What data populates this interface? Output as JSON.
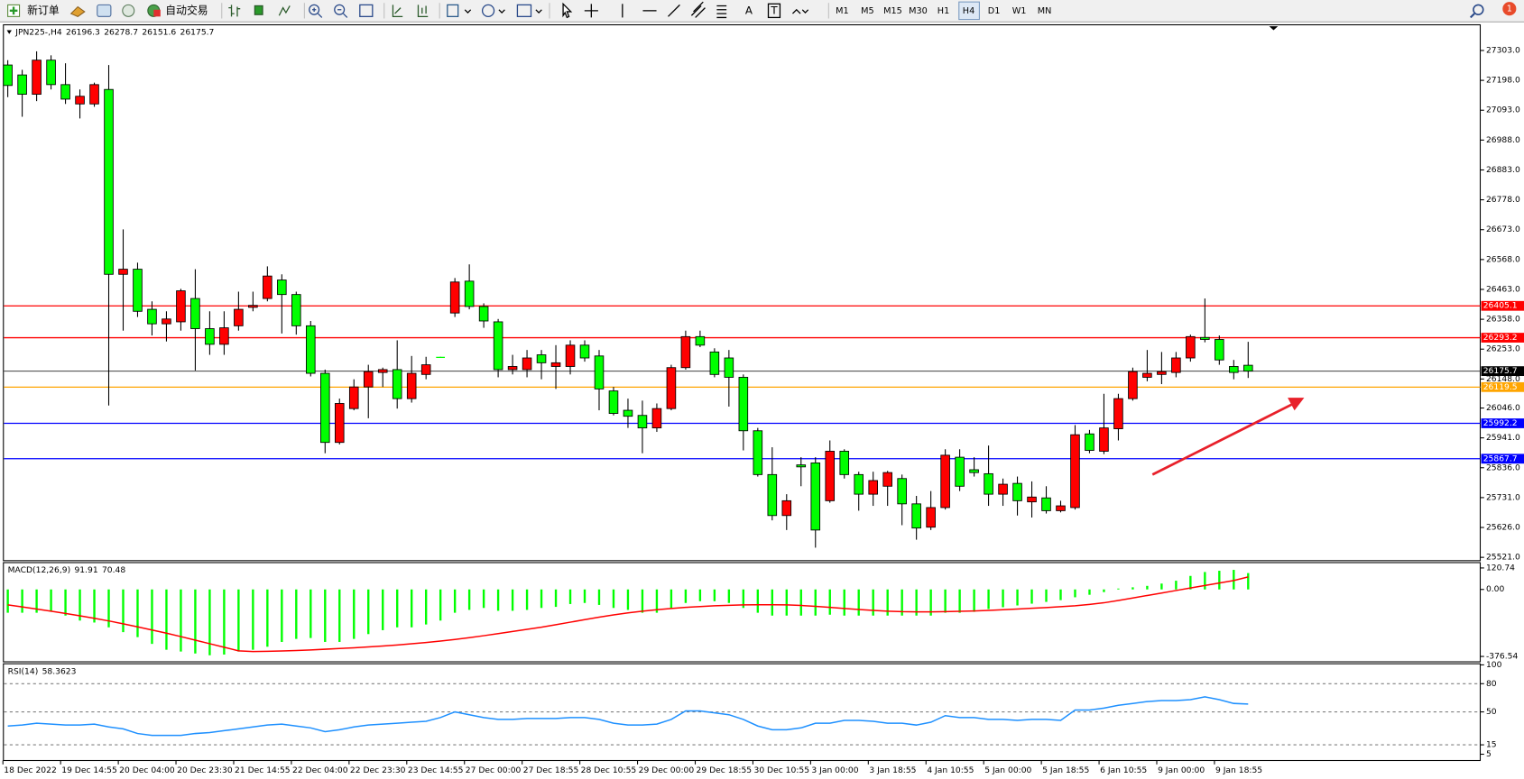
{
  "toolbar": {
    "new_order": "新订单",
    "auto_trading": "自动交易",
    "tools": [
      "A",
      "T"
    ],
    "timeframes": [
      "M1",
      "M5",
      "M15",
      "M30",
      "H1",
      "H4",
      "D1",
      "W1",
      "MN"
    ],
    "notification": "1"
  },
  "chart_data": [
    {
      "type": "candlestick",
      "title": "JPN225-,H4",
      "categories": [
        "18 Dec 2022",
        null,
        null,
        null,
        "19 Dec 14:55",
        null,
        null,
        null,
        "20 Dec 04:00",
        null,
        null,
        null,
        "20 Dec 23:30",
        null,
        null,
        null,
        "21 Dec 14:55",
        null,
        null,
        null,
        "22 Dec 04:00",
        null,
        null,
        null,
        "22 Dec 23:30",
        null,
        null,
        null,
        "23 Dec 14:55",
        null,
        null,
        null,
        "27 Dec 00:00",
        null,
        null,
        null,
        "27 Dec 18:55",
        null,
        null,
        null,
        "28 Dec 10:55",
        null,
        null,
        null,
        "29 Dec 00:00",
        null,
        null,
        null,
        "29 Dec 18:55",
        null,
        null,
        null,
        "30 Dec 10:55",
        null,
        null,
        null,
        "3 Jan 00:00",
        null,
        null,
        null,
        "3 Jan 18:55",
        null,
        null,
        null,
        "4 Jan 10:55",
        null,
        null,
        null,
        "5 Jan 00:00",
        null,
        null,
        null,
        "5 Jan 18:55",
        null,
        null,
        null,
        "6 Jan 10:55",
        null,
        null,
        null,
        "9 Jan 00:00",
        null,
        null,
        null,
        "9 Jan 18:55",
        null,
        null
      ],
      "ohlc": [
        [
          27252,
          27269,
          27139,
          27180
        ],
        [
          27217,
          27235,
          27070,
          27149
        ],
        [
          27149,
          27300,
          27125,
          27269
        ],
        [
          27269,
          27286,
          27166,
          27183
        ],
        [
          27183,
          27258,
          27115,
          27132
        ],
        [
          27115,
          27166,
          27064,
          27142
        ],
        [
          27115,
          27190,
          27105,
          27183
        ],
        [
          27166,
          27252,
          26055,
          26516
        ],
        [
          26516,
          26674,
          26318,
          26534
        ],
        [
          26534,
          26557,
          26366,
          26386
        ],
        [
          26393,
          26421,
          26301,
          26342
        ],
        [
          26342,
          26386,
          26280,
          26359
        ],
        [
          26349,
          26465,
          26318,
          26458
        ],
        [
          26431,
          26534,
          26178,
          26325
        ],
        [
          26325,
          26386,
          26233,
          26270
        ],
        [
          26270,
          26386,
          26233,
          26328
        ],
        [
          26335,
          26455,
          26318,
          26393
        ],
        [
          26400,
          26455,
          26386,
          26407
        ],
        [
          26431,
          26544,
          26421,
          26510
        ],
        [
          26496,
          26516,
          26308,
          26445
        ],
        [
          26445,
          26455,
          26304,
          26335
        ],
        [
          26335,
          26352,
          26157,
          26168
        ],
        [
          26168,
          26181,
          25887,
          25925
        ],
        [
          25925,
          26079,
          25918,
          26062
        ],
        [
          26044,
          26147,
          26038,
          26120
        ],
        [
          26120,
          26198,
          26010,
          26174
        ],
        [
          26171,
          26188,
          26120,
          26181
        ],
        [
          26181,
          26284,
          26044,
          26079
        ],
        [
          26079,
          26229,
          26065,
          26168
        ],
        [
          26164,
          26226,
          26147,
          26198
        ],
        [
          26226,
          26226,
          26222,
          26222
        ],
        [
          26380,
          26503,
          26366,
          26489
        ],
        [
          26492,
          26551,
          26393,
          26403
        ],
        [
          26403,
          26414,
          26328,
          26352
        ],
        [
          26349,
          26359,
          26154,
          26181
        ],
        [
          26181,
          26233,
          26164,
          26192
        ],
        [
          26181,
          26250,
          26154,
          26222
        ],
        [
          26233,
          26250,
          26147,
          26205
        ],
        [
          26192,
          26267,
          26113,
          26205
        ],
        [
          26192,
          26284,
          26164,
          26267
        ],
        [
          26267,
          26284,
          26209,
          26222
        ],
        [
          26229,
          26250,
          26038,
          26113
        ],
        [
          26106,
          26120,
          26020,
          26027
        ],
        [
          26038,
          26079,
          25976,
          26017
        ],
        [
          26020,
          26072,
          25887,
          25976
        ],
        [
          25976,
          26062,
          25962,
          26044
        ],
        [
          26044,
          26198,
          26038,
          26188
        ],
        [
          26188,
          26318,
          26181,
          26297
        ],
        [
          26297,
          26318,
          26260,
          26267
        ],
        [
          26243,
          26256,
          26154,
          26164
        ],
        [
          26222,
          26250,
          26051,
          26154
        ],
        [
          26154,
          26164,
          25897,
          25966
        ],
        [
          25966,
          25976,
          25805,
          25812
        ],
        [
          25812,
          25908,
          25651,
          25668
        ],
        [
          25668,
          25743,
          25617,
          25720
        ],
        [
          25846,
          25873,
          25771,
          25839
        ],
        [
          25853,
          25873,
          25555,
          25617
        ],
        [
          25720,
          25932,
          25713,
          25894
        ],
        [
          25894,
          25901,
          25798,
          25812
        ],
        [
          25812,
          25822,
          25685,
          25743
        ],
        [
          25743,
          25822,
          25702,
          25791
        ],
        [
          25771,
          25825,
          25702,
          25819
        ],
        [
          25798,
          25812,
          25634,
          25709
        ],
        [
          25709,
          25737,
          25583,
          25624
        ],
        [
          25627,
          25754,
          25617,
          25696
        ],
        [
          25696,
          25901,
          25689,
          25880
        ],
        [
          25873,
          25901,
          25754,
          25771
        ],
        [
          25829,
          25873,
          25805,
          25819
        ],
        [
          25815,
          25914,
          25702,
          25743
        ],
        [
          25743,
          25798,
          25702,
          25778
        ],
        [
          25781,
          25805,
          25668,
          25720
        ],
        [
          25716,
          25788,
          25661,
          25733
        ],
        [
          25730,
          25771,
          25675,
          25685
        ],
        [
          25685,
          25720,
          25679,
          25702
        ],
        [
          25696,
          25986,
          25689,
          25952
        ],
        [
          25955,
          25969,
          25887,
          25897
        ],
        [
          25894,
          26096,
          25884,
          25976
        ],
        [
          25973,
          26096,
          25932,
          26079
        ],
        [
          26079,
          26188,
          26072,
          26174
        ],
        [
          26154,
          26250,
          26140,
          26168
        ],
        [
          26164,
          26243,
          26130,
          26174
        ],
        [
          26171,
          26243,
          26154,
          26222
        ],
        [
          26222,
          26304,
          26209,
          26297
        ],
        [
          26294,
          26431,
          26277,
          26287
        ],
        [
          26287,
          26301,
          26198,
          26215
        ],
        [
          26192,
          26215,
          26147,
          26171
        ],
        [
          26196.3,
          26278.7,
          26151.6,
          26175.7
        ]
      ],
      "up_color": "#ff0000",
      "down_color": "#00ff00",
      "price_line_color": "#404040",
      "ylim": [
        25511,
        27395
      ],
      "yticks": [
        {
          "value": 27303,
          "label": "27303.0"
        },
        {
          "value": 27198,
          "label": "27198.0"
        },
        {
          "value": 27093,
          "label": "27093.0"
        },
        {
          "value": 26988,
          "label": "26988.0"
        },
        {
          "value": 26883,
          "label": "26883.0"
        },
        {
          "value": 26778,
          "label": "26778.0"
        },
        {
          "value": 26673,
          "label": "26673.0"
        },
        {
          "value": 26568,
          "label": "26568.0"
        },
        {
          "value": 26463,
          "label": "26463.0"
        },
        {
          "value": 26358,
          "label": "26358.0"
        },
        {
          "value": 26253,
          "label": "26253.0"
        },
        {
          "value": 26148,
          "label": "26148.0"
        },
        {
          "value": 26046,
          "label": "26046.0"
        },
        {
          "value": 25941,
          "label": "25941.0"
        },
        {
          "value": 25836,
          "label": "25836.0"
        },
        {
          "value": 25731,
          "label": "25731.0"
        },
        {
          "value": 25626,
          "label": "25626.0"
        },
        {
          "value": 25521,
          "label": "25521.0"
        }
      ],
      "hlines": [
        {
          "value": 26405.1,
          "color": "#ff0000"
        },
        {
          "value": 26293.2,
          "color": "#ff0000"
        },
        {
          "value": 26119.5,
          "color": "#ffa500"
        },
        {
          "value": 25992.2,
          "color": "#0000ff"
        },
        {
          "value": 25867.7,
          "color": "#0000ff"
        }
      ]
    },
    {
      "type": "macd",
      "title": "MACD(12,26,9)",
      "histogram": {
        "color": "#00ff00",
        "values": [
          -131,
          -131,
          -131,
          -120,
          -147,
          -175,
          -186,
          -213,
          -240,
          -268,
          -306,
          -339,
          -349,
          -360,
          -370,
          -366,
          -349,
          -339,
          -322,
          -295,
          -278,
          -273,
          -295,
          -295,
          -278,
          -251,
          -229,
          -213,
          -213,
          -197,
          -175,
          -131,
          -115,
          -104,
          -120,
          -120,
          -115,
          -104,
          -98,
          -82,
          -76,
          -87,
          -104,
          -115,
          -131,
          -131,
          -109,
          -76,
          -66,
          -66,
          -76,
          -104,
          -131,
          -147,
          -147,
          -147,
          -147,
          -142,
          -147,
          -147,
          -147,
          -147,
          -147,
          -147,
          -147,
          -131,
          -131,
          -126,
          -110,
          -100,
          -90,
          -80,
          -70,
          -60,
          -44,
          -30,
          -15,
          5,
          12,
          20,
          33,
          49,
          76,
          98,
          105,
          110,
          91.91
        ]
      },
      "signal": {
        "color": "#ff0000",
        "values": [
          -87,
          -98,
          -110,
          -122,
          -135,
          -148,
          -162,
          -177,
          -193,
          -210,
          -228,
          -246,
          -265,
          -285,
          -305,
          -325,
          -345,
          -349,
          -348,
          -346,
          -343,
          -340,
          -336,
          -332,
          -328,
          -323,
          -318,
          -312,
          -305,
          -298,
          -290,
          -281,
          -271,
          -260,
          -248,
          -236,
          -224,
          -212,
          -198,
          -184,
          -170,
          -156,
          -143,
          -132,
          -122,
          -114,
          -107,
          -101,
          -96,
          -92,
          -89,
          -87,
          -86,
          -86,
          -87,
          -90,
          -95,
          -101,
          -107,
          -113,
          -118,
          -122,
          -125,
          -126,
          -126,
          -125,
          -123,
          -121,
          -118,
          -114,
          -110,
          -106,
          -102,
          -97,
          -92,
          -84,
          -75,
          -62,
          -48,
          -34,
          -20,
          -6,
          8,
          22,
          36,
          50,
          70.48
        ]
      },
      "ylim": [
        -404,
        153.5
      ],
      "yticks": [
        120.74,
        {
          "value": 0,
          "label": "0.00"
        },
        -376.54
      ]
    },
    {
      "type": "line",
      "title": "RSI(14)",
      "color": "#1e90ff",
      "values": [
        35,
        36,
        38,
        37,
        36,
        36,
        37,
        34,
        32,
        27,
        25,
        25,
        25,
        27,
        28,
        30,
        32,
        34,
        36,
        37,
        35,
        33,
        29,
        31,
        34,
        36,
        37,
        38,
        39,
        40,
        44,
        50,
        47,
        44,
        42,
        42,
        43,
        43,
        43,
        44,
        44,
        42,
        38,
        36,
        36,
        37,
        42,
        51,
        51,
        49,
        47,
        42,
        35,
        31,
        31,
        33,
        38,
        38,
        41,
        41,
        40,
        38,
        38,
        36,
        39,
        46,
        44,
        44,
        42,
        42,
        41,
        42,
        42,
        41,
        52,
        52,
        54,
        57,
        59,
        61,
        62,
        62,
        63,
        66,
        63,
        59,
        58.3623
      ],
      "ylim": [
        -1.7,
        101.7
      ],
      "yticks": [
        100,
        80,
        50,
        15,
        5
      ]
    }
  ]
}
